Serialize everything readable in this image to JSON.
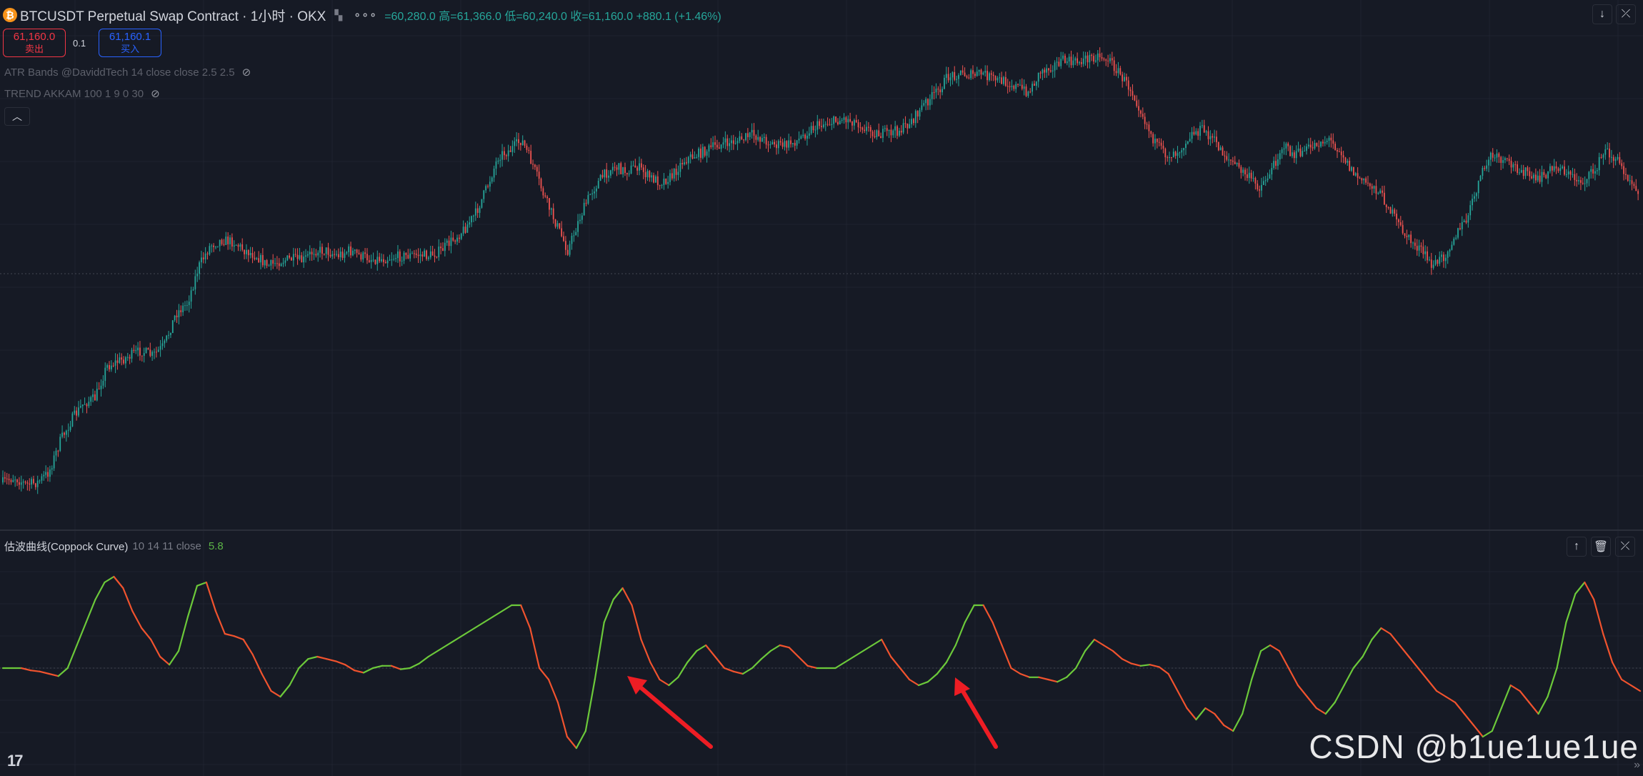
{
  "header": {
    "coin_symbol": "₿",
    "title": "BTCUSDT Perpetual Swap Contract · 1小时 · OKX",
    "more": "∘∘∘",
    "ohlc": "=60,280.0  高=61,366.0  低=60,240.0  收=61,160.0  +880.1 (+1.46%)"
  },
  "trade": {
    "sell_price": "61,160.0",
    "sell_label": "卖出",
    "quantity": "0.1",
    "buy_price": "61,160.1",
    "buy_label": "买入"
  },
  "indicators": [
    {
      "label": "ATR Bands @DaviddTech 14 close close 2.5 2.5"
    },
    {
      "label": "TREND AKKAM 100 1 9 0 30"
    }
  ],
  "lower_pane": {
    "name": "估波曲线(Coppock Curve)",
    "params": "10 14 11 close",
    "value": "5.8"
  },
  "watermark": "CSDN @b1ue1ue1ue",
  "logo": "17",
  "colors": {
    "background": "#161a25",
    "grid": "#1f2330",
    "up": "#26a69a",
    "down": "#ef5350",
    "coppock_up": "#6cc93a",
    "coppock_down": "#f1532e",
    "arrow": "#ee1d24"
  },
  "chart_data": [
    {
      "type": "candlestick",
      "title": "BTCUSDT Perpetual Swap Contract · 1小时 · OKX",
      "y_series": [
        {
          "name": "low",
          "values": [
            0,
            70
          ]
        },
        {
          "name": "close",
          "values": [
            150,
            290
          ]
        }
      ],
      "price_path": [
        460,
        455,
        462,
        460,
        450,
        420,
        400,
        385,
        380,
        350,
        345,
        340,
        335,
        340,
        330,
        300,
        290,
        255,
        235,
        230,
        232,
        240,
        245,
        255,
        250,
        248,
        250,
        240,
        240,
        245,
        240,
        245,
        248,
        248,
        246,
        245,
        244,
        245,
        240,
        230,
        220,
        205,
        180,
        150,
        145,
        135,
        160,
        190,
        215,
        240,
        210,
        185,
        170,
        160,
        165,
        160,
        170,
        175,
        170,
        155,
        150,
        145,
        140,
        138,
        135,
        130,
        135,
        140,
        140,
        135,
        125,
        120,
        118,
        115,
        118,
        125,
        130,
        128,
        125,
        115,
        100,
        90,
        75,
        72,
        74,
        72,
        78,
        80,
        85,
        90,
        70,
        65,
        60,
        62,
        58,
        55,
        60,
        75,
        90,
        115,
        140,
        150,
        145,
        130,
        125,
        135,
        150,
        160,
        170,
        180,
        165,
        140,
        150,
        145,
        138,
        135,
        145,
        165,
        175,
        180,
        195,
        215,
        230,
        240,
        255,
        245,
        225,
        210,
        175,
        150,
        155,
        160,
        165,
        175,
        165,
        160,
        170,
        175,
        165,
        145,
        155,
        170,
        185
      ]
    },
    {
      "type": "line",
      "title": "估波曲线(Coppock Curve)",
      "series": [
        {
          "name": "估波曲线(Coppock Curve)",
          "values": [
            0,
            0,
            0,
            -2,
            -3,
            -5,
            -7,
            0,
            20,
            40,
            60,
            75,
            80,
            70,
            50,
            35,
            25,
            10,
            3,
            15,
            45,
            72,
            75,
            50,
            30,
            28,
            25,
            12,
            -5,
            -20,
            -25,
            -15,
            0,
            8,
            10,
            8,
            6,
            3,
            -2,
            -4,
            0,
            2,
            2,
            -1,
            0,
            4,
            10,
            15,
            20,
            25,
            30,
            35,
            40,
            45,
            50,
            55,
            55,
            35,
            0,
            -10,
            -30,
            -60,
            -70,
            -55,
            -10,
            40,
            60,
            70,
            55,
            25,
            5,
            -10,
            -15,
            -8,
            5,
            15,
            20,
            10,
            0,
            -3,
            -5,
            0,
            8,
            15,
            20,
            18,
            10,
            2,
            0,
            0,
            0,
            5,
            10,
            15,
            20,
            25,
            10,
            0,
            -10,
            -15,
            -12,
            -5,
            5,
            20,
            40,
            55,
            55,
            40,
            20,
            0,
            -5,
            -8,
            -8,
            -10,
            -12,
            -8,
            0,
            15,
            25,
            20,
            15,
            8,
            4,
            2,
            3,
            1,
            -5,
            -20,
            -35,
            -45,
            -35,
            -40,
            -50,
            -55,
            -40,
            -10,
            15,
            20,
            15,
            0,
            -15,
            -25,
            -35,
            -40,
            -30,
            -15,
            0,
            10,
            25,
            35,
            30,
            20,
            10,
            0,
            -10,
            -20,
            -25,
            -30,
            -40,
            -50,
            -60,
            -55,
            -35,
            -15,
            -20,
            -30,
            -40,
            -25,
            0,
            40,
            65,
            75,
            60,
            30,
            5,
            -10,
            -15,
            -20
          ]
        }
      ],
      "zero_line": 0
    }
  ]
}
